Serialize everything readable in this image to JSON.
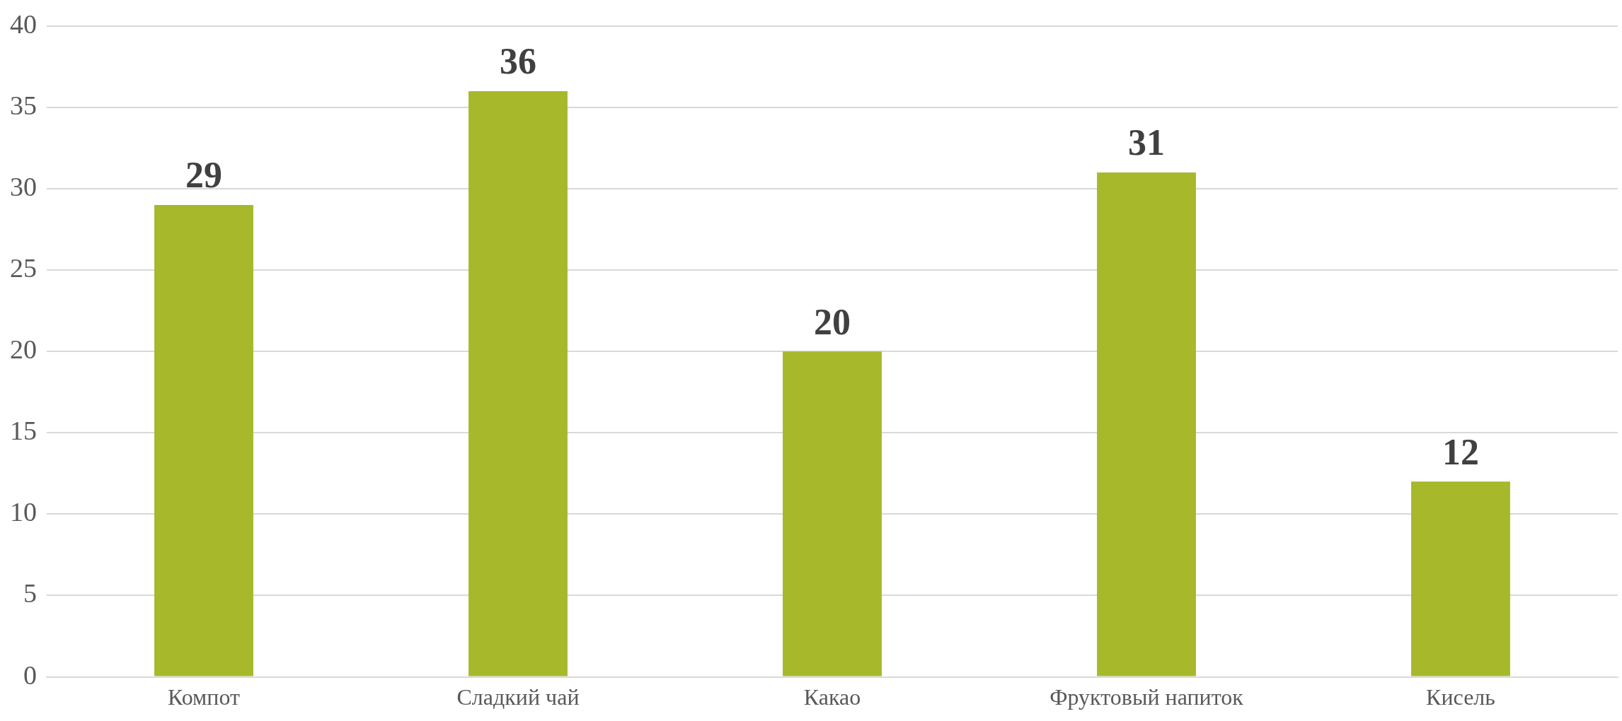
{
  "chart_data": {
    "type": "bar",
    "categories": [
      "Компот",
      "Сладкий чай",
      "Какао",
      "Фруктовый напиток",
      "Кисель"
    ],
    "values": [
      29,
      36,
      20,
      31,
      12
    ],
    "color": "#a7b82a",
    "ylim": [
      0,
      40
    ],
    "yticks": [
      0,
      5,
      10,
      15,
      20,
      25,
      30,
      35,
      40
    ],
    "grid": "y",
    "data_labels": true
  }
}
